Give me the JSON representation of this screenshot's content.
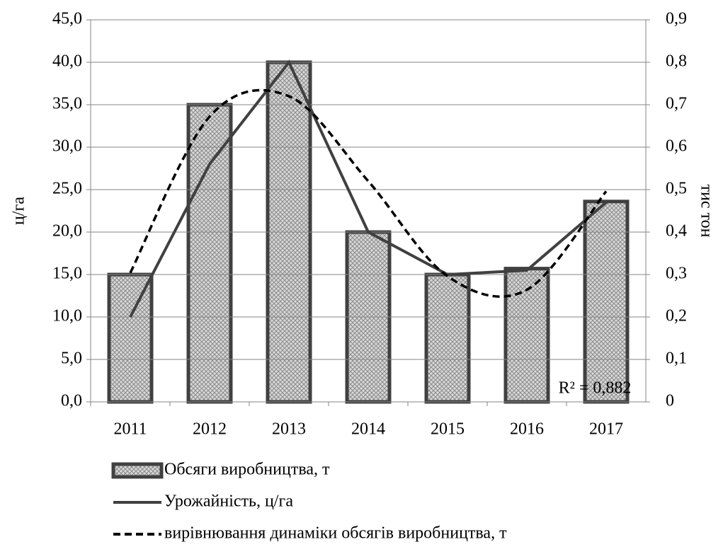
{
  "chart_data": {
    "type": "bar",
    "categories": [
      "2011",
      "2012",
      "2013",
      "2014",
      "2015",
      "2016",
      "2017"
    ],
    "series": [
      {
        "name": "Обсяги виробництва, т",
        "type": "bar",
        "color": "#404040",
        "values": [
          15,
          35,
          40,
          20,
          15,
          15.7,
          23.6
        ]
      },
      {
        "name": "Урожайність, ц/га",
        "type": "line",
        "axis": "y2",
        "color": "#404040",
        "values": [
          0.2,
          0.56,
          0.8,
          0.4,
          0.3,
          0.31,
          0.47
        ]
      },
      {
        "name": "вирівнювання динаміки обсягів виробництва, т",
        "type": "line",
        "dashed": true,
        "color": "#000000",
        "values": [
          15.2,
          33.6,
          36,
          26,
          14.8,
          13.2,
          24.8
        ]
      }
    ],
    "ylabel": "ц/га",
    "y2label": "тис тон",
    "annotation": "R² = 0,882",
    "ylim": [
      0,
      45
    ],
    "yticks": [
      {
        "value": 0,
        "label": "0,0"
      },
      {
        "value": 5,
        "label": "5,0"
      },
      {
        "value": 10,
        "label": "10,0"
      },
      {
        "value": 15,
        "label": "15,0"
      },
      {
        "value": 20,
        "label": "20,0"
      },
      {
        "value": 25,
        "label": "25,0"
      },
      {
        "value": 30,
        "label": "30,0"
      },
      {
        "value": 35,
        "label": "35,0"
      },
      {
        "value": 40,
        "label": "40,0"
      },
      {
        "value": 45,
        "label": "45,0"
      }
    ],
    "y2lim": [
      0,
      0.9
    ],
    "y2ticks": [
      0,
      {
        "value": 0.1,
        "label": "0,1"
      },
      {
        "value": 0.2,
        "label": "0,2"
      },
      {
        "value": 0.3,
        "label": "0,3"
      },
      {
        "value": 0.4,
        "label": "0,4"
      },
      {
        "value": 0.5,
        "label": "0,5"
      },
      {
        "value": 0.6,
        "label": "0,6"
      },
      {
        "value": 0.7,
        "label": "0,7"
      },
      {
        "value": 0.8,
        "label": "0,8"
      },
      {
        "value": 0.9,
        "label": "0,9"
      }
    ],
    "grid": true,
    "legend": "bottom"
  }
}
